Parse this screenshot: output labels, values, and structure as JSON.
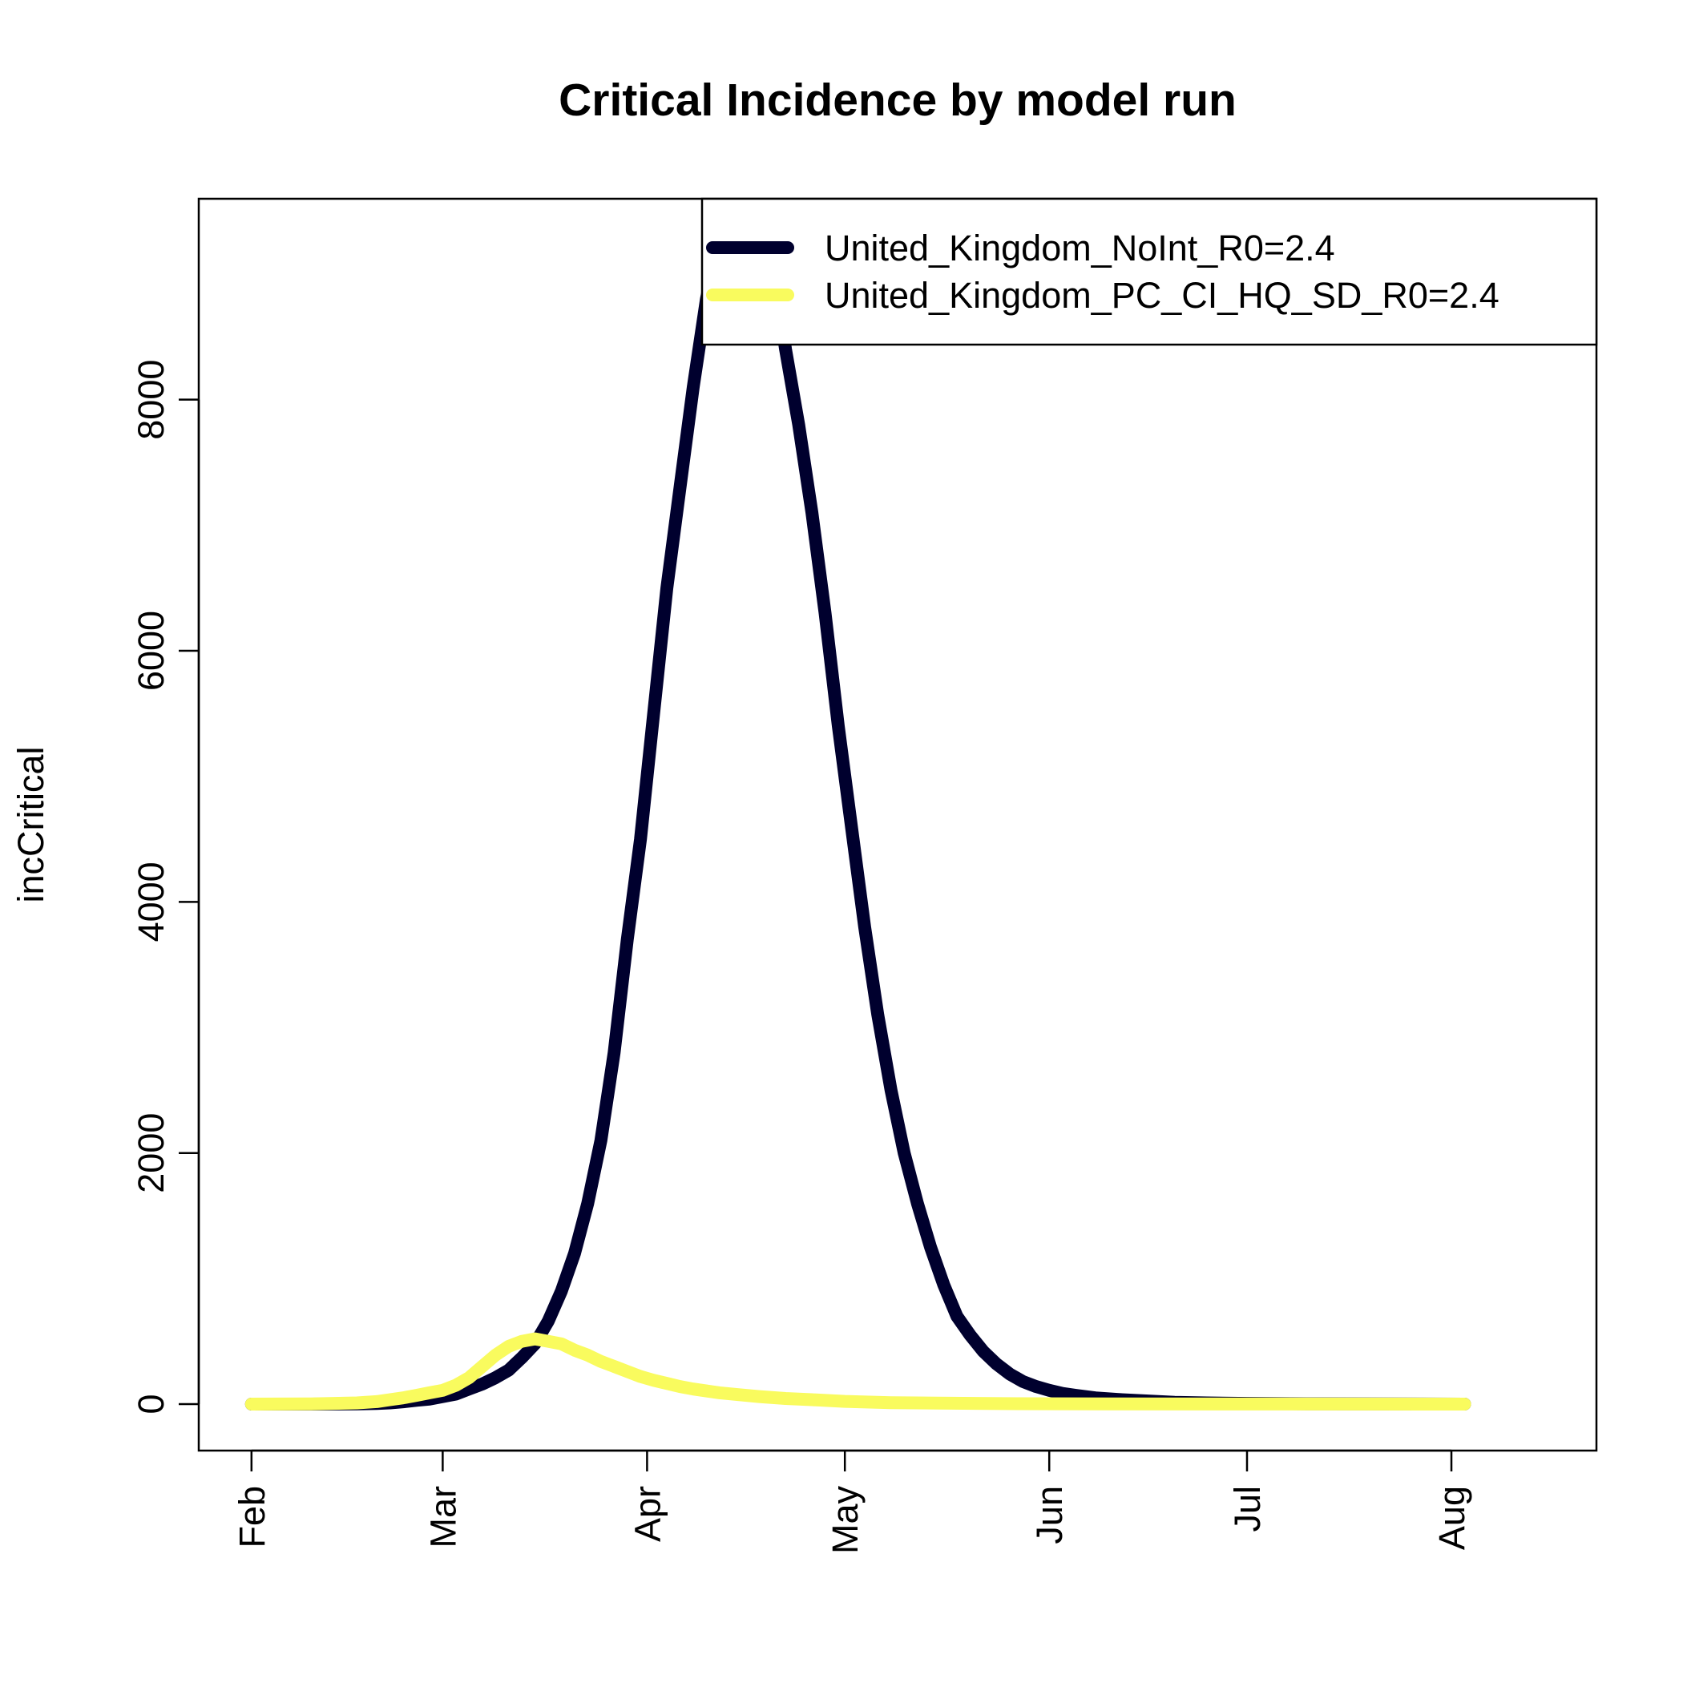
{
  "chart_data": {
    "type": "line",
    "title": "Critical Incidence by model run",
    "xlabel": "",
    "ylabel": "incCritical",
    "x_ticks": [
      {
        "date": "2020-02-01",
        "label": "Feb"
      },
      {
        "date": "2020-03-01",
        "label": "Mar"
      },
      {
        "date": "2020-04-01",
        "label": "Apr"
      },
      {
        "date": "2020-05-01",
        "label": "May"
      },
      {
        "date": "2020-06-01",
        "label": "Jun"
      },
      {
        "date": "2020-07-01",
        "label": "Jul"
      },
      {
        "date": "2020-08-01",
        "label": "Aug"
      }
    ],
    "y_ticks": [
      0,
      2000,
      4000,
      6000,
      8000
    ],
    "xlim": [
      "2020-01-24",
      "2020-08-23"
    ],
    "ylim": [
      -370,
      9600
    ],
    "grid": false,
    "legend": "top-right",
    "series": [
      {
        "name": "United_Kingdom_NoInt_R0=2.4",
        "color": "#00002E",
        "points": [
          [
            "2020-02-01",
            0
          ],
          [
            "2020-02-10",
            0
          ],
          [
            "2020-02-17",
            2
          ],
          [
            "2020-02-20",
            5
          ],
          [
            "2020-02-22",
            10
          ],
          [
            "2020-02-24",
            18
          ],
          [
            "2020-02-26",
            30
          ],
          [
            "2020-02-28",
            40
          ],
          [
            "2020-03-01",
            60
          ],
          [
            "2020-03-03",
            80
          ],
          [
            "2020-03-05",
            120
          ],
          [
            "2020-03-07",
            160
          ],
          [
            "2020-03-09",
            210
          ],
          [
            "2020-03-11",
            270
          ],
          [
            "2020-03-13",
            370
          ],
          [
            "2020-03-15",
            480
          ],
          [
            "2020-03-17",
            660
          ],
          [
            "2020-03-19",
            900
          ],
          [
            "2020-03-21",
            1200
          ],
          [
            "2020-03-23",
            1600
          ],
          [
            "2020-03-25",
            2100
          ],
          [
            "2020-03-27",
            2800
          ],
          [
            "2020-03-29",
            3700
          ],
          [
            "2020-03-31",
            4500
          ],
          [
            "2020-04-02",
            5500
          ],
          [
            "2020-04-04",
            6500
          ],
          [
            "2020-04-06",
            7300
          ],
          [
            "2020-04-08",
            8100
          ],
          [
            "2020-04-10",
            8800
          ],
          [
            "2020-04-12",
            9300
          ],
          [
            "2020-04-14",
            9500
          ],
          [
            "2020-04-16",
            9600
          ],
          [
            "2020-04-18",
            9450
          ],
          [
            "2020-04-20",
            9100
          ],
          [
            "2020-04-22",
            8400
          ],
          [
            "2020-04-24",
            7800
          ],
          [
            "2020-04-26",
            7100
          ],
          [
            "2020-04-28",
            6300
          ],
          [
            "2020-04-30",
            5400
          ],
          [
            "2020-05-02",
            4600
          ],
          [
            "2020-05-04",
            3800
          ],
          [
            "2020-05-06",
            3100
          ],
          [
            "2020-05-08",
            2500
          ],
          [
            "2020-05-10",
            2000
          ],
          [
            "2020-05-12",
            1600
          ],
          [
            "2020-05-14",
            1250
          ],
          [
            "2020-05-16",
            950
          ],
          [
            "2020-05-18",
            700
          ],
          [
            "2020-05-20",
            550
          ],
          [
            "2020-05-22",
            420
          ],
          [
            "2020-05-24",
            320
          ],
          [
            "2020-05-26",
            240
          ],
          [
            "2020-05-28",
            180
          ],
          [
            "2020-05-30",
            140
          ],
          [
            "2020-06-01",
            110
          ],
          [
            "2020-06-03",
            85
          ],
          [
            "2020-06-05",
            70
          ],
          [
            "2020-06-08",
            50
          ],
          [
            "2020-06-12",
            35
          ],
          [
            "2020-06-16",
            25
          ],
          [
            "2020-06-20",
            15
          ],
          [
            "2020-06-25",
            10
          ],
          [
            "2020-07-01",
            6
          ],
          [
            "2020-07-10",
            3
          ],
          [
            "2020-07-20",
            2
          ],
          [
            "2020-08-03",
            0
          ]
        ]
      },
      {
        "name": "United_Kingdom_PC_CI_HQ_SD_R0=2.4",
        "color": "#F9FB5E",
        "points": [
          [
            "2020-02-01",
            0
          ],
          [
            "2020-02-10",
            2
          ],
          [
            "2020-02-17",
            10
          ],
          [
            "2020-02-20",
            20
          ],
          [
            "2020-02-22",
            35
          ],
          [
            "2020-02-24",
            50
          ],
          [
            "2020-02-26",
            70
          ],
          [
            "2020-02-28",
            90
          ],
          [
            "2020-03-01",
            110
          ],
          [
            "2020-03-03",
            150
          ],
          [
            "2020-03-05",
            210
          ],
          [
            "2020-03-07",
            300
          ],
          [
            "2020-03-09",
            390
          ],
          [
            "2020-03-11",
            460
          ],
          [
            "2020-03-13",
            500
          ],
          [
            "2020-03-15",
            520
          ],
          [
            "2020-03-17",
            500
          ],
          [
            "2020-03-19",
            480
          ],
          [
            "2020-03-21",
            430
          ],
          [
            "2020-03-23",
            390
          ],
          [
            "2020-03-25",
            340
          ],
          [
            "2020-03-27",
            300
          ],
          [
            "2020-03-29",
            260
          ],
          [
            "2020-03-31",
            220
          ],
          [
            "2020-04-02",
            190
          ],
          [
            "2020-04-04",
            165
          ],
          [
            "2020-04-06",
            140
          ],
          [
            "2020-04-08",
            120
          ],
          [
            "2020-04-10",
            105
          ],
          [
            "2020-04-12",
            90
          ],
          [
            "2020-04-15",
            75
          ],
          [
            "2020-04-18",
            60
          ],
          [
            "2020-04-22",
            45
          ],
          [
            "2020-04-26",
            35
          ],
          [
            "2020-05-01",
            22
          ],
          [
            "2020-05-08",
            12
          ],
          [
            "2020-05-15",
            8
          ],
          [
            "2020-05-25",
            4
          ],
          [
            "2020-06-10",
            2
          ],
          [
            "2020-07-01",
            1
          ],
          [
            "2020-08-03",
            0
          ]
        ]
      }
    ]
  }
}
